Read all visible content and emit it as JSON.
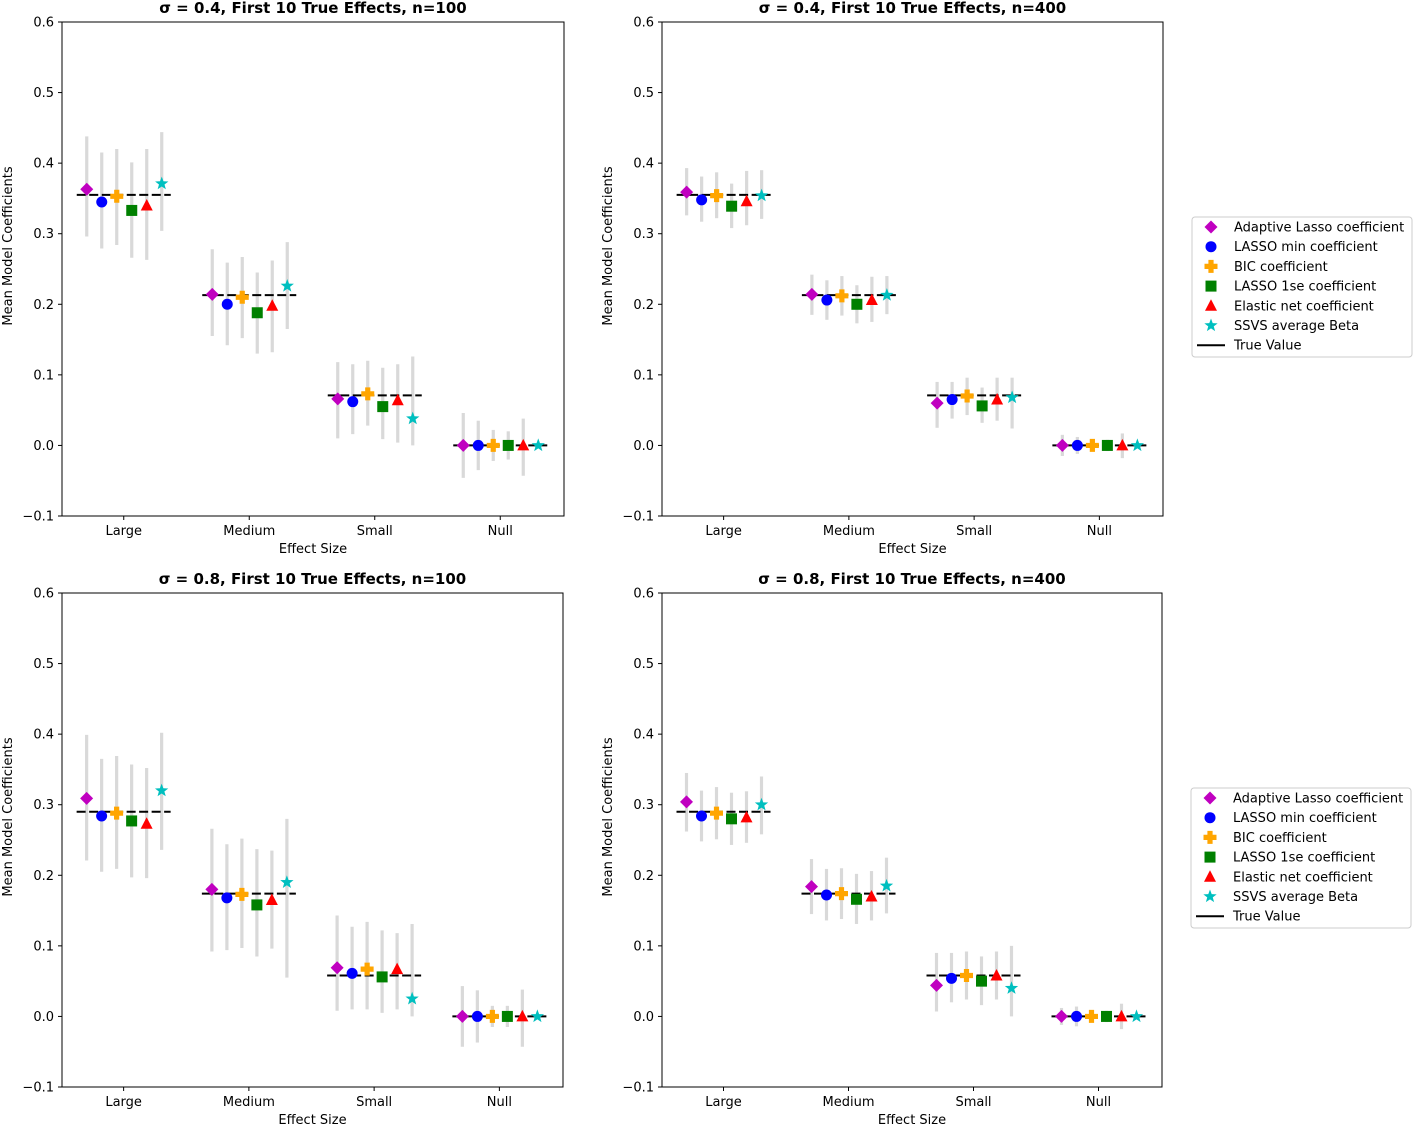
{
  "chart_data": [
    {
      "type": "scatter",
      "title": "σ = 0.4, First 10 True Effects, n=100",
      "xlabel": "Effect Size",
      "ylabel": "Mean Model Coefficients",
      "ylim": [
        -0.1,
        0.6
      ],
      "yticks": [
        "−0.1",
        "0.0",
        "0.1",
        "0.2",
        "0.3",
        "0.4",
        "0.5",
        "0.6"
      ],
      "categories": [
        "Large",
        "Medium",
        "Small",
        "Null"
      ],
      "true_values": [
        0.355,
        0.213,
        0.071,
        0.0
      ],
      "series": [
        {
          "name": "Adaptive Lasso coefficient",
          "values": [
            0.363,
            0.214,
            0.066,
            0.0
          ],
          "lower": [
            0.296,
            0.155,
            0.01,
            -0.046
          ],
          "upper": [
            0.438,
            0.278,
            0.118,
            0.046
          ]
        },
        {
          "name": "LASSO min coefficient",
          "values": [
            0.345,
            0.2,
            0.062,
            0.0
          ],
          "lower": [
            0.279,
            0.142,
            0.016,
            -0.035
          ],
          "upper": [
            0.415,
            0.259,
            0.115,
            0.035
          ]
        },
        {
          "name": "BIC coefficient",
          "values": [
            0.353,
            0.21,
            0.073,
            0.0
          ],
          "lower": [
            0.284,
            0.152,
            0.028,
            -0.022
          ],
          "upper": [
            0.42,
            0.267,
            0.12,
            0.022
          ]
        },
        {
          "name": "LASSO 1se coefficient",
          "values": [
            0.333,
            0.188,
            0.055,
            0.0
          ],
          "lower": [
            0.266,
            0.13,
            0.009,
            -0.02
          ],
          "upper": [
            0.401,
            0.245,
            0.11,
            0.02
          ]
        },
        {
          "name": "Elastic net coefficient",
          "values": [
            0.34,
            0.198,
            0.064,
            0.0
          ],
          "lower": [
            0.263,
            0.132,
            0.004,
            -0.043
          ],
          "upper": [
            0.42,
            0.262,
            0.115,
            0.038
          ]
        },
        {
          "name": "SSVS average Beta",
          "values": [
            0.371,
            0.226,
            0.038,
            0.0
          ],
          "lower": [
            0.304,
            0.165,
            0.0,
            0.0
          ],
          "upper": [
            0.444,
            0.288,
            0.126,
            0.0
          ]
        }
      ]
    },
    {
      "type": "scatter",
      "title": "σ = 0.4, First 10 True Effects, n=400",
      "xlabel": "Effect Size",
      "ylabel": "Mean Model Coefficients",
      "ylim": [
        -0.1,
        0.6
      ],
      "yticks": [
        "−0.1",
        "0.0",
        "0.1",
        "0.2",
        "0.3",
        "0.4",
        "0.5",
        "0.6"
      ],
      "categories": [
        "Large",
        "Medium",
        "Small",
        "Null"
      ],
      "true_values": [
        0.355,
        0.213,
        0.071,
        0.0
      ],
      "series": [
        {
          "name": "Adaptive Lasso coefficient",
          "values": [
            0.359,
            0.214,
            0.06,
            0.0
          ],
          "lower": [
            0.326,
            0.185,
            0.025,
            -0.015
          ],
          "upper": [
            0.393,
            0.242,
            0.09,
            0.015
          ]
        },
        {
          "name": "LASSO min coefficient",
          "values": [
            0.348,
            0.206,
            0.065,
            0.0
          ],
          "lower": [
            0.317,
            0.178,
            0.038,
            -0.012
          ],
          "upper": [
            0.381,
            0.234,
            0.09,
            0.012
          ]
        },
        {
          "name": "BIC coefficient",
          "values": [
            0.354,
            0.212,
            0.07,
            0.0
          ],
          "lower": [
            0.322,
            0.184,
            0.043,
            -0.008
          ],
          "upper": [
            0.387,
            0.24,
            0.096,
            0.008
          ]
        },
        {
          "name": "LASSO 1se coefficient",
          "values": [
            0.339,
            0.2,
            0.056,
            0.0
          ],
          "lower": [
            0.308,
            0.173,
            0.032,
            -0.008
          ],
          "upper": [
            0.371,
            0.227,
            0.082,
            0.008
          ]
        },
        {
          "name": "Elastic net coefficient",
          "values": [
            0.346,
            0.206,
            0.065,
            0.0
          ],
          "lower": [
            0.312,
            0.175,
            0.035,
            -0.018
          ],
          "upper": [
            0.389,
            0.239,
            0.096,
            0.017
          ]
        },
        {
          "name": "SSVS average Beta",
          "values": [
            0.354,
            0.213,
            0.068,
            0.0
          ],
          "lower": [
            0.321,
            0.186,
            0.024,
            0.0
          ],
          "upper": [
            0.39,
            0.24,
            0.096,
            0.0
          ]
        }
      ]
    },
    {
      "type": "scatter",
      "title": "σ = 0.8, First 10 True Effects, n=100",
      "xlabel": "Effect Size",
      "ylabel": "Mean Model Coefficients",
      "ylim": [
        -0.1,
        0.6
      ],
      "yticks": [
        "−0.1",
        "0.0",
        "0.1",
        "0.2",
        "0.3",
        "0.4",
        "0.5",
        "0.6"
      ],
      "categories": [
        "Large",
        "Medium",
        "Small",
        "Null"
      ],
      "true_values": [
        0.29,
        0.174,
        0.058,
        0.0
      ],
      "series": [
        {
          "name": "Adaptive Lasso coefficient",
          "values": [
            0.309,
            0.18,
            0.069,
            0.0
          ],
          "lower": [
            0.221,
            0.092,
            0.008,
            -0.043
          ],
          "upper": [
            0.399,
            0.266,
            0.143,
            0.043
          ]
        },
        {
          "name": "LASSO min coefficient",
          "values": [
            0.284,
            0.168,
            0.061,
            0.0
          ],
          "lower": [
            0.205,
            0.094,
            0.01,
            -0.037
          ],
          "upper": [
            0.365,
            0.244,
            0.127,
            0.037
          ]
        },
        {
          "name": "BIC coefficient",
          "values": [
            0.288,
            0.173,
            0.067,
            0.0
          ],
          "lower": [
            0.209,
            0.097,
            0.01,
            -0.015
          ],
          "upper": [
            0.369,
            0.252,
            0.134,
            0.015
          ]
        },
        {
          "name": "LASSO 1se coefficient",
          "values": [
            0.277,
            0.158,
            0.056,
            0.0
          ],
          "lower": [
            0.197,
            0.085,
            0.005,
            -0.015
          ],
          "upper": [
            0.357,
            0.237,
            0.122,
            0.015
          ]
        },
        {
          "name": "Elastic net coefficient",
          "values": [
            0.273,
            0.165,
            0.067,
            0.0
          ],
          "lower": [
            0.196,
            0.096,
            0.01,
            -0.043
          ],
          "upper": [
            0.352,
            0.235,
            0.118,
            0.038
          ]
        },
        {
          "name": "SSVS average Beta",
          "values": [
            0.32,
            0.19,
            0.025,
            0.0
          ],
          "lower": [
            0.236,
            0.055,
            0.0,
            0.0
          ],
          "upper": [
            0.402,
            0.28,
            0.131,
            0.0
          ]
        }
      ]
    },
    {
      "type": "scatter",
      "title": "σ = 0.8, First 10 True Effects, n=400",
      "xlabel": "Effect Size",
      "ylabel": "Mean Model Coefficients",
      "ylim": [
        -0.1,
        0.6
      ],
      "yticks": [
        "−0.1",
        "0.0",
        "0.1",
        "0.2",
        "0.3",
        "0.4",
        "0.5",
        "0.6"
      ],
      "categories": [
        "Large",
        "Medium",
        "Small",
        "Null"
      ],
      "true_values": [
        0.29,
        0.174,
        0.058,
        0.0
      ],
      "series": [
        {
          "name": "Adaptive Lasso coefficient",
          "values": [
            0.304,
            0.184,
            0.044,
            0.0
          ],
          "lower": [
            0.262,
            0.145,
            0.007,
            -0.012
          ],
          "upper": [
            0.345,
            0.223,
            0.09,
            0.012
          ]
        },
        {
          "name": "LASSO min coefficient",
          "values": [
            0.284,
            0.172,
            0.054,
            0.0
          ],
          "lower": [
            0.248,
            0.136,
            0.02,
            -0.014
          ],
          "upper": [
            0.32,
            0.209,
            0.09,
            0.014
          ]
        },
        {
          "name": "BIC coefficient",
          "values": [
            0.288,
            0.174,
            0.058,
            0.0
          ],
          "lower": [
            0.251,
            0.138,
            0.024,
            -0.008
          ],
          "upper": [
            0.325,
            0.21,
            0.092,
            0.008
          ]
        },
        {
          "name": "LASSO 1se coefficient",
          "values": [
            0.28,
            0.166,
            0.05,
            0.0
          ],
          "lower": [
            0.243,
            0.131,
            0.016,
            -0.008
          ],
          "upper": [
            0.317,
            0.202,
            0.085,
            0.008
          ]
        },
        {
          "name": "Elastic net coefficient",
          "values": [
            0.282,
            0.17,
            0.058,
            0.0
          ],
          "lower": [
            0.246,
            0.136,
            0.024,
            -0.018
          ],
          "upper": [
            0.319,
            0.206,
            0.092,
            0.018
          ]
        },
        {
          "name": "SSVS average Beta",
          "values": [
            0.3,
            0.185,
            0.04,
            0.0
          ],
          "lower": [
            0.258,
            0.146,
            0.0,
            0.0
          ],
          "upper": [
            0.34,
            0.225,
            0.1,
            0.0
          ]
        }
      ]
    }
  ],
  "legend": {
    "entries": [
      {
        "label": "Adaptive Lasso coefficient",
        "marker": "diamond",
        "color": "#c000c0"
      },
      {
        "label": "LASSO min coefficient",
        "marker": "circle",
        "color": "#0000ff"
      },
      {
        "label": "BIC coefficient",
        "marker": "plus",
        "color": "#ffa500"
      },
      {
        "label": "LASSO 1se coefficient",
        "marker": "square",
        "color": "#008000"
      },
      {
        "label": "Elastic net coefficient",
        "marker": "triangle",
        "color": "#ff0000"
      },
      {
        "label": "SSVS average Beta",
        "marker": "star",
        "color": "#00bfbf"
      },
      {
        "label": "True Value",
        "marker": "line",
        "color": "#000000"
      }
    ]
  }
}
